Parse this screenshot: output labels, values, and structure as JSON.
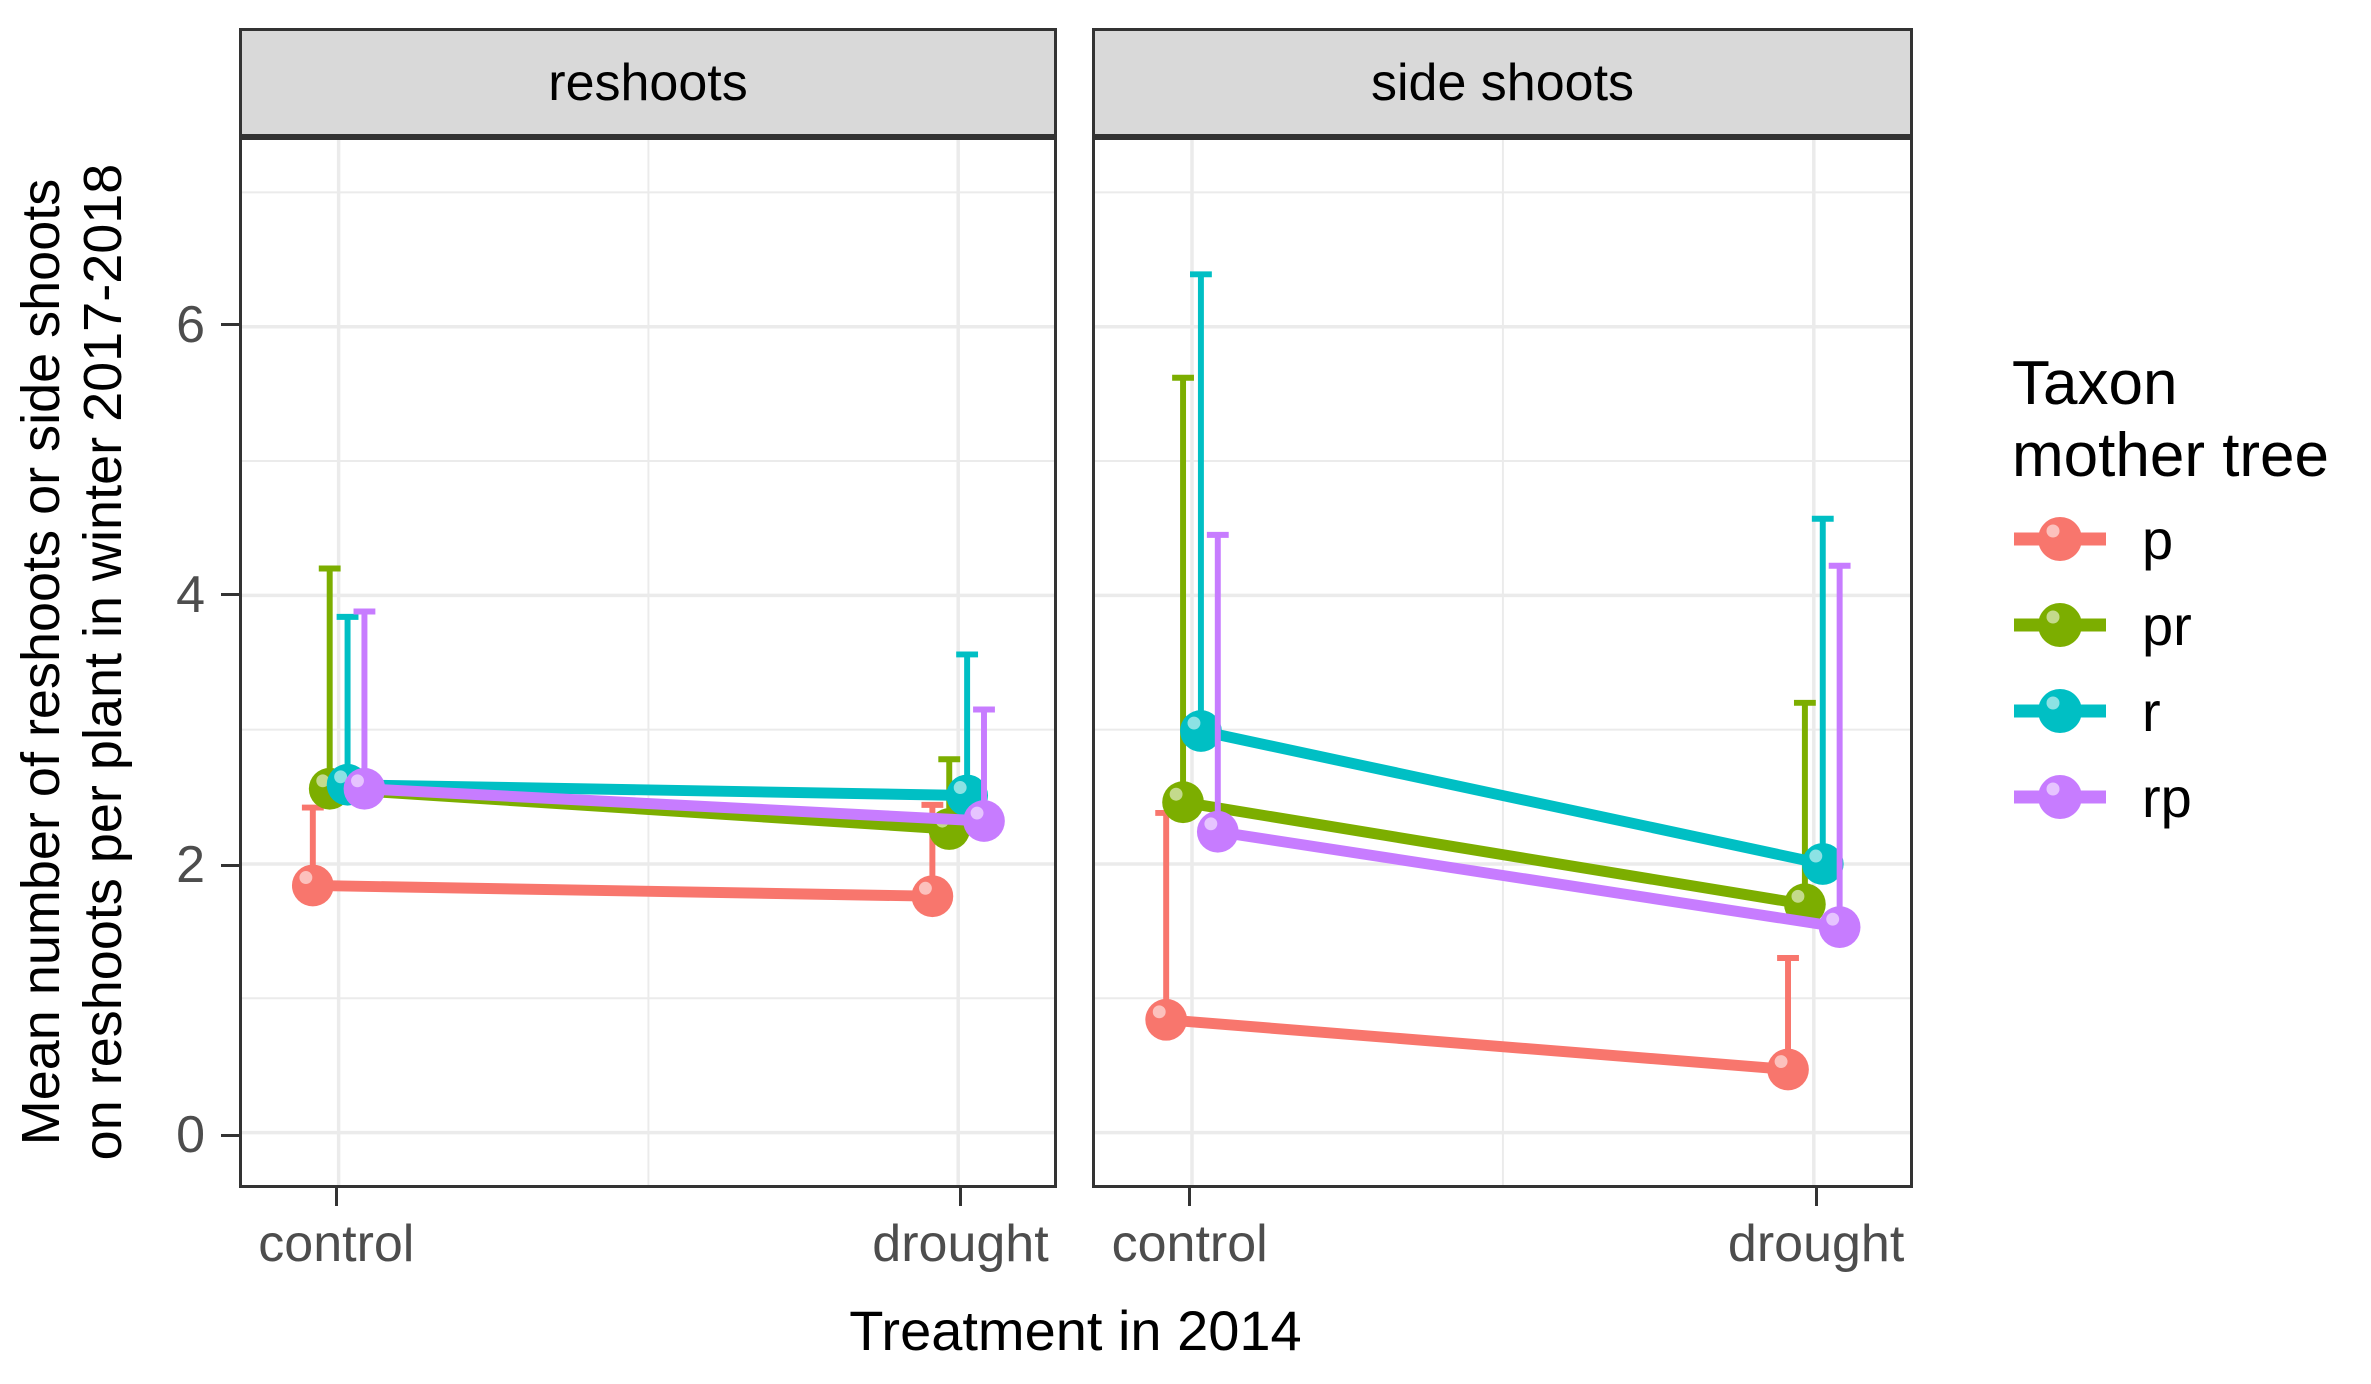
{
  "figure": {
    "x_axis_title": "Treatment in 2014",
    "y_axis_title_line1": "Mean number of reshoots or side shoots",
    "y_axis_title_line2": "on reshoots per plant in winter 2017-2018"
  },
  "legend": {
    "title_line1": "Taxon",
    "title_line2": "mother tree",
    "entries": [
      {
        "label": "p",
        "color": "#F8766D"
      },
      {
        "label": "pr",
        "color": "#7CAE00"
      },
      {
        "label": "r",
        "color": "#00BFC4"
      },
      {
        "label": "rp",
        "color": "#C77CFF"
      }
    ]
  },
  "chart_data": {
    "type": "line",
    "description": "Dodged point-line chart with upper error bars, faceted into two panels",
    "facets": [
      {
        "label": "reshoots",
        "categories": [
          "control",
          "drought"
        ],
        "series": [
          {
            "name": "p",
            "color": "#F8766D",
            "means": [
              1.84,
              1.76
            ],
            "upper": [
              2.42,
              2.44
            ]
          },
          {
            "name": "pr",
            "color": "#7CAE00",
            "means": [
              2.56,
              2.26
            ],
            "upper": [
              4.2,
              2.78
            ]
          },
          {
            "name": "r",
            "color": "#00BFC4",
            "means": [
              2.59,
              2.51
            ],
            "upper": [
              3.84,
              3.56
            ]
          },
          {
            "name": "rp",
            "color": "#C77CFF",
            "means": [
              2.56,
              2.32
            ],
            "upper": [
              3.88,
              3.15
            ]
          }
        ]
      },
      {
        "label": "side shoots",
        "categories": [
          "control",
          "drought"
        ],
        "series": [
          {
            "name": "p",
            "color": "#F8766D",
            "means": [
              0.84,
              0.47
            ],
            "upper": [
              2.38,
              1.3
            ]
          },
          {
            "name": "pr",
            "color": "#7CAE00",
            "means": [
              2.46,
              1.7
            ],
            "upper": [
              5.62,
              3.2
            ]
          },
          {
            "name": "r",
            "color": "#00BFC4",
            "means": [
              2.99,
              2.0
            ],
            "upper": [
              6.39,
              4.57
            ]
          },
          {
            "name": "rp",
            "color": "#C77CFF",
            "means": [
              2.24,
              1.53
            ],
            "upper": [
              4.45,
              4.22
            ]
          }
        ]
      }
    ],
    "title": "",
    "xlabel": "Treatment in 2014",
    "ylabel": "Mean number of reshoots or side shoots on reshoots per plant in winter 2017-2018",
    "x_categories": [
      "control",
      "drought"
    ],
    "y_breaks": [
      0,
      2,
      4,
      6
    ],
    "y_minor_breaks": [
      1,
      3,
      5,
      7
    ],
    "ylim": [
      -0.39,
      7.39
    ],
    "grid": true,
    "legend_title": "Taxon mother tree",
    "legend_position": "right",
    "colors": {
      "grid": "#EBEBEB",
      "panel_border": "#333333",
      "strip_fill": "#D9D9D9",
      "tick_text": "#4d4d4d"
    }
  }
}
